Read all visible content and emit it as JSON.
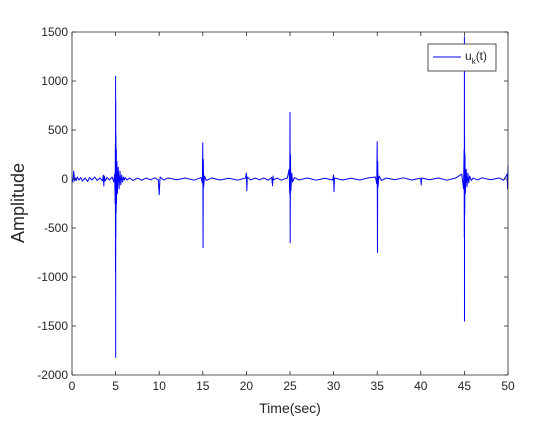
{
  "chart_data": {
    "type": "line",
    "title": "",
    "xlabel": "Time(sec)",
    "ylabel": "Amplitude",
    "xlim": [
      0,
      50
    ],
    "ylim": [
      -2000,
      1500
    ],
    "xticks": [
      0,
      5,
      10,
      15,
      20,
      25,
      30,
      35,
      40,
      45,
      50
    ],
    "yticks": [
      -2000,
      -1500,
      -1000,
      -500,
      0,
      500,
      1000,
      1500
    ],
    "grid": false,
    "legend_placement": "top-right",
    "series": [
      {
        "name": "u_k(t)",
        "legend_main": "u",
        "legend_sub": "k",
        "legend_tail": "(t)",
        "color": "#0000ff",
        "x": [
          0,
          0.1,
          0.2,
          0.3,
          0.4,
          0.5,
          0.6,
          0.8,
          1.0,
          1.2,
          1.5,
          1.8,
          2.0,
          2.3,
          2.6,
          2.9,
          3.2,
          3.5,
          3.6,
          3.65,
          3.7,
          3.8,
          4.0,
          4.3,
          4.6,
          4.8,
          4.9,
          4.95,
          4.97,
          4.99,
          5.0,
          5.01,
          5.02,
          5.03,
          5.04,
          5.06,
          5.08,
          5.1,
          5.15,
          5.2,
          5.3,
          5.4,
          5.5,
          5.6,
          5.7,
          5.8,
          5.9,
          6.0,
          6.1,
          6.3,
          6.6,
          7.0,
          7.5,
          8.0,
          8.5,
          9.0,
          9.5,
          9.9,
          10.0,
          10.1,
          10.5,
          11.0,
          12.0,
          13.0,
          14.0,
          14.8,
          14.95,
          15.0,
          15.03,
          15.06,
          15.1,
          15.2,
          15.4,
          16.0,
          17.0,
          18.0,
          19.0,
          19.9,
          20.0,
          20.05,
          20.1,
          20.5,
          21.0,
          21.5,
          22.0,
          22.5,
          22.9,
          23.0,
          23.05,
          23.1,
          23.5,
          24.0,
          24.7,
          24.9,
          24.97,
          25.0,
          25.02,
          25.05,
          25.1,
          25.2,
          25.3,
          25.5,
          26.0,
          27.0,
          28.0,
          29.0,
          29.9,
          30.0,
          30.05,
          30.1,
          31.0,
          32.0,
          33.0,
          34.0,
          34.8,
          34.95,
          35.0,
          35.03,
          35.06,
          35.1,
          35.2,
          35.5,
          36.0,
          37.0,
          38.0,
          39.0,
          39.9,
          40.0,
          40.05,
          40.1,
          41.0,
          42.0,
          43.0,
          44.0,
          44.7,
          44.9,
          44.97,
          44.99,
          45.0,
          45.01,
          45.02,
          45.04,
          45.06,
          45.1,
          45.2,
          45.3,
          45.4,
          45.5,
          45.6,
          45.8,
          46.0,
          46.5,
          47.0,
          48.0,
          49.0,
          49.5,
          49.9,
          49.95,
          50.0
        ],
        "y": [
          0,
          -30,
          80,
          -20,
          10,
          -15,
          20,
          -10,
          15,
          -20,
          10,
          -25,
          15,
          -10,
          20,
          -15,
          10,
          -20,
          40,
          -70,
          30,
          -20,
          15,
          -10,
          20,
          -30,
          50,
          -250,
          350,
          -950,
          1050,
          -1820,
          800,
          -600,
          450,
          -350,
          300,
          -250,
          180,
          -150,
          120,
          -100,
          80,
          -60,
          40,
          -30,
          20,
          -10,
          15,
          -10,
          10,
          -15,
          10,
          -12,
          10,
          -8,
          12,
          -10,
          -160,
          20,
          -10,
          10,
          -8,
          10,
          -12,
          15,
          -40,
          370,
          -700,
          200,
          -80,
          30,
          -15,
          10,
          -10,
          8,
          -12,
          10,
          60,
          -120,
          20,
          -10,
          10,
          -8,
          10,
          -12,
          15,
          -70,
          30,
          -10,
          10,
          -12,
          10,
          100,
          -150,
          680,
          -650,
          250,
          -120,
          60,
          -30,
          15,
          -10,
          10,
          -12,
          8,
          -10,
          40,
          -130,
          10,
          -10,
          8,
          -10,
          12,
          20,
          -50,
          380,
          -750,
          180,
          -80,
          30,
          -15,
          10,
          -8,
          12,
          -10,
          8,
          -10,
          -60,
          10,
          -8,
          10,
          -12,
          10,
          50,
          -100,
          300,
          -600,
          1450,
          -1450,
          430,
          -350,
          250,
          -150,
          100,
          -80,
          60,
          -40,
          30,
          -15,
          10,
          -10,
          12,
          -8,
          10,
          -12,
          50,
          -100,
          140
        ]
      }
    ]
  }
}
